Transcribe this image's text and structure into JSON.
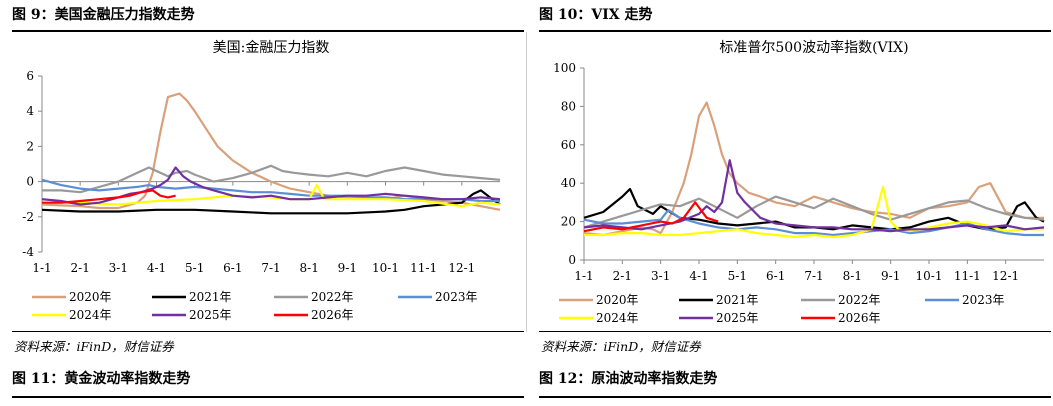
{
  "figures": [
    {
      "caption": "图 9：美国金融压力指数走势",
      "source": "资料来源：iFinD，财信证券",
      "next_caption": "图 11：黄金波动率指数走势"
    },
    {
      "caption": "图 10：VIX 走势",
      "source": "资料来源：iFinD，财信证券",
      "next_caption": "图 12：原油波动率指数走势"
    }
  ],
  "colors": {
    "2020年": "#d9a07a",
    "2021年": "#000000",
    "2022年": "#999999",
    "2023年": "#5b8ed6",
    "2024年": "#ffff00",
    "2025年": "#7030a0",
    "2026年": "#ff0000"
  },
  "chart_data": [
    {
      "type": "line",
      "title": "美国:金融压力指数",
      "x_ticks": [
        "1-1",
        "2-1",
        "3-1",
        "4-1",
        "5-1",
        "6-1",
        "7-1",
        "8-1",
        "9-1",
        "10-1",
        "11-1",
        "12-1"
      ],
      "ylim": [
        -4,
        6
      ],
      "y_ticks": [
        -4,
        -2,
        0,
        2,
        4,
        6
      ],
      "zero_line": true,
      "legend": "bottom",
      "legend_rows": [
        [
          "2020年",
          "2021年",
          "2022年",
          "2023年"
        ],
        [
          "2024年",
          "2025年",
          "2026年"
        ]
      ],
      "series": [
        {
          "name": "2020年",
          "x": [
            0,
            0.5,
            1,
            1.5,
            2,
            2.5,
            2.7,
            2.9,
            3.1,
            3.3,
            3.6,
            3.8,
            4,
            4.3,
            4.6,
            5,
            5.5,
            6,
            6.5,
            7,
            7.5,
            8,
            8.5,
            9,
            9.5,
            10,
            10.5,
            11,
            11.5,
            12
          ],
          "y": [
            -1.3,
            -1.35,
            -1.4,
            -1.5,
            -1.5,
            -1.2,
            -0.8,
            0.5,
            2.8,
            4.8,
            5,
            4.6,
            4,
            3,
            2,
            1.2,
            0.5,
            0,
            -0.4,
            -0.6,
            -0.8,
            -0.9,
            -0.9,
            -1,
            -0.8,
            -1,
            -1.1,
            -1.2,
            -1.4,
            -1.6
          ]
        },
        {
          "name": "2021年",
          "x": [
            0,
            1,
            2,
            3,
            4,
            5,
            6,
            7,
            8,
            9,
            9.5,
            10,
            10.5,
            11,
            11.3,
            11.5,
            11.8,
            12
          ],
          "y": [
            -1.6,
            -1.7,
            -1.7,
            -1.6,
            -1.6,
            -1.7,
            -1.8,
            -1.8,
            -1.8,
            -1.7,
            -1.6,
            -1.4,
            -1.3,
            -1.2,
            -0.7,
            -0.5,
            -1,
            -1.3
          ]
        },
        {
          "name": "2022年",
          "x": [
            0,
            0.5,
            1,
            1.5,
            2,
            2.5,
            2.8,
            3,
            3.3,
            3.5,
            3.8,
            4,
            4.5,
            5,
            5.5,
            6,
            6.3,
            6.6,
            7,
            7.5,
            8,
            8.5,
            9,
            9.5,
            10,
            10.5,
            11,
            11.5,
            12
          ],
          "y": [
            -0.5,
            -0.5,
            -0.6,
            -0.3,
            0,
            0.5,
            0.8,
            0.6,
            0.3,
            0.5,
            0.6,
            0.4,
            0,
            0.2,
            0.5,
            0.9,
            0.6,
            0.5,
            0.4,
            0.3,
            0.5,
            0.3,
            0.6,
            0.8,
            0.6,
            0.4,
            0.3,
            0.2,
            0.1
          ]
        },
        {
          "name": "2023年",
          "x": [
            0,
            0.5,
            1,
            1.5,
            2,
            2.5,
            2.8,
            3,
            3.5,
            4,
            4.5,
            5,
            5.5,
            6,
            6.5,
            7,
            7.5,
            8,
            8.5,
            9,
            9.5,
            10,
            10.5,
            11,
            11.5,
            12
          ],
          "y": [
            0.1,
            -0.2,
            -0.4,
            -0.5,
            -0.4,
            -0.3,
            -0.2,
            -0.3,
            -0.4,
            -0.3,
            -0.4,
            -0.5,
            -0.6,
            -0.6,
            -0.7,
            -0.8,
            -0.8,
            -0.8,
            -0.9,
            -0.9,
            -1,
            -1,
            -1,
            -1,
            -1.1,
            -1.1
          ]
        },
        {
          "name": "2024年",
          "x": [
            0,
            1,
            2,
            3,
            4,
            5,
            6,
            6.5,
            7,
            7.2,
            7.4,
            8,
            9,
            10,
            11,
            11.5,
            12
          ],
          "y": [
            -1.2,
            -1.2,
            -1.3,
            -1.1,
            -1,
            -0.8,
            -0.9,
            -1,
            -1,
            -0.2,
            -1,
            -1,
            -1,
            -1.1,
            -1.4,
            -1.2,
            -1.3
          ]
        },
        {
          "name": "2025年",
          "x": [
            0,
            0.5,
            1,
            1.5,
            2,
            2.3,
            2.6,
            2.9,
            3.1,
            3.3,
            3.5,
            3.7,
            3.9,
            4.2,
            4.5,
            5,
            5.5,
            6,
            6.5,
            7,
            7.5,
            8,
            8.5,
            9,
            9.5,
            10,
            10.5,
            11,
            11.5,
            12
          ],
          "y": [
            -1,
            -1.1,
            -1.3,
            -1.2,
            -0.9,
            -0.7,
            -0.6,
            -0.4,
            -0.2,
            0.1,
            0.8,
            0.3,
            0,
            -0.3,
            -0.5,
            -0.8,
            -0.9,
            -0.8,
            -1,
            -1,
            -0.9,
            -0.8,
            -0.8,
            -0.7,
            -0.8,
            -0.9,
            -1,
            -1,
            -0.9,
            -1
          ]
        },
        {
          "name": "2026年",
          "x": [
            0,
            0.5,
            1,
            1.5,
            2,
            2.3,
            2.6,
            2.9,
            3.1,
            3.3,
            3.5
          ],
          "y": [
            -1.2,
            -1.2,
            -1.1,
            -1.0,
            -0.9,
            -0.8,
            -0.6,
            -0.5,
            -0.8,
            -0.9,
            -0.8
          ]
        }
      ]
    },
    {
      "type": "line",
      "title": "标准普尔500波动率指数(VIX)",
      "x_ticks": [
        "1-1",
        "2-1",
        "3-1",
        "4-1",
        "5-1",
        "6-1",
        "7-1",
        "8-1",
        "9-1",
        "10-1",
        "11-1",
        "12-1"
      ],
      "ylim": [
        0,
        100
      ],
      "y_ticks": [
        0,
        20,
        40,
        60,
        80,
        100
      ],
      "legend": "bottom",
      "legend_rows": [
        [
          "2020年",
          "2021年",
          "2022年",
          "2023年"
        ],
        [
          "2024年",
          "2025年",
          "2026年"
        ]
      ],
      "series": [
        {
          "name": "2020年",
          "x": [
            0,
            0.5,
            1,
            1.5,
            1.8,
            2,
            2.3,
            2.6,
            2.8,
            3,
            3.2,
            3.4,
            3.6,
            3.8,
            4,
            4.3,
            4.6,
            5,
            5.5,
            6,
            6.5,
            7,
            7.5,
            8,
            8.5,
            9,
            9.5,
            10,
            10.3,
            10.6,
            11,
            11.5,
            12
          ],
          "y": [
            14,
            13,
            15,
            17,
            16,
            14,
            25,
            40,
            55,
            75,
            82,
            70,
            55,
            45,
            40,
            35,
            33,
            30,
            28,
            33,
            30,
            27,
            25,
            24,
            22,
            27,
            28,
            30,
            38,
            40,
            25,
            22,
            22
          ]
        },
        {
          "name": "2021年",
          "x": [
            0,
            0.5,
            1,
            1.2,
            1.4,
            1.8,
            2,
            2.5,
            3,
            3.5,
            4,
            4.5,
            5,
            5.5,
            6,
            6.5,
            7,
            7.5,
            8,
            8.5,
            9,
            9.5,
            10,
            10.5,
            11,
            11.3,
            11.5,
            11.8,
            12
          ],
          "y": [
            22,
            25,
            33,
            37,
            28,
            24,
            28,
            22,
            21,
            19,
            18,
            19,
            20,
            17,
            17,
            16,
            18,
            17,
            16,
            17,
            20,
            22,
            18,
            16,
            17,
            28,
            30,
            22,
            20
          ]
        },
        {
          "name": "2022年",
          "x": [
            0,
            0.5,
            1,
            1.5,
            2,
            2.5,
            3,
            3.5,
            4,
            4.5,
            5,
            5.5,
            6,
            6.5,
            7,
            7.5,
            8,
            8.5,
            9,
            9.5,
            10,
            10.5,
            11,
            11.5,
            12
          ],
          "y": [
            17,
            20,
            23,
            26,
            29,
            28,
            32,
            27,
            22,
            28,
            33,
            30,
            27,
            32,
            28,
            24,
            21,
            24,
            27,
            30,
            31,
            27,
            24,
            22,
            21
          ]
        },
        {
          "name": "2023年",
          "x": [
            0,
            0.5,
            1,
            1.5,
            2,
            2.2,
            2.5,
            3,
            3.5,
            4,
            4.5,
            5,
            5.5,
            6,
            6.5,
            7,
            7.5,
            8,
            8.5,
            9,
            9.5,
            10,
            10.5,
            11,
            11.5,
            12
          ],
          "y": [
            21,
            19,
            19,
            20,
            21,
            26,
            22,
            19,
            17,
            16,
            17,
            16,
            14,
            14,
            13,
            14,
            15,
            16,
            14,
            15,
            17,
            19,
            16,
            14,
            13,
            13
          ]
        },
        {
          "name": "2024年",
          "x": [
            0,
            0.5,
            1,
            1.5,
            2,
            2.5,
            3,
            3.5,
            4,
            4.5,
            5,
            5.5,
            6,
            6.5,
            7,
            7.5,
            7.8,
            8,
            8.2,
            8.5,
            9,
            9.5,
            10,
            10.5,
            11,
            11.5,
            12
          ],
          "y": [
            13,
            13,
            14,
            14,
            13,
            13,
            14,
            15,
            16,
            14,
            13,
            12,
            13,
            12,
            13,
            16,
            38,
            20,
            16,
            15,
            17,
            19,
            20,
            18,
            15,
            16,
            16
          ]
        },
        {
          "name": "2025年",
          "x": [
            0,
            0.5,
            1,
            1.5,
            2,
            2.5,
            3,
            3.2,
            3.4,
            3.6,
            3.8,
            4,
            4.2,
            4.4,
            4.6,
            5,
            5.5,
            6,
            6.5,
            7,
            7.5,
            8,
            8.5,
            9,
            9.5,
            10,
            10.5,
            11,
            11.5,
            12
          ],
          "y": [
            17,
            18,
            17,
            16,
            18,
            20,
            24,
            28,
            25,
            30,
            52,
            35,
            30,
            26,
            22,
            19,
            18,
            17,
            17,
            16,
            16,
            15,
            16,
            16,
            17,
            18,
            17,
            18,
            16,
            17
          ]
        },
        {
          "name": "2026年",
          "x": [
            0,
            0.5,
            1,
            1.5,
            2,
            2.3,
            2.6,
            2.9,
            3.2,
            3.5
          ],
          "y": [
            15,
            17,
            16,
            18,
            20,
            19,
            22,
            30,
            22,
            20
          ]
        }
      ]
    }
  ]
}
